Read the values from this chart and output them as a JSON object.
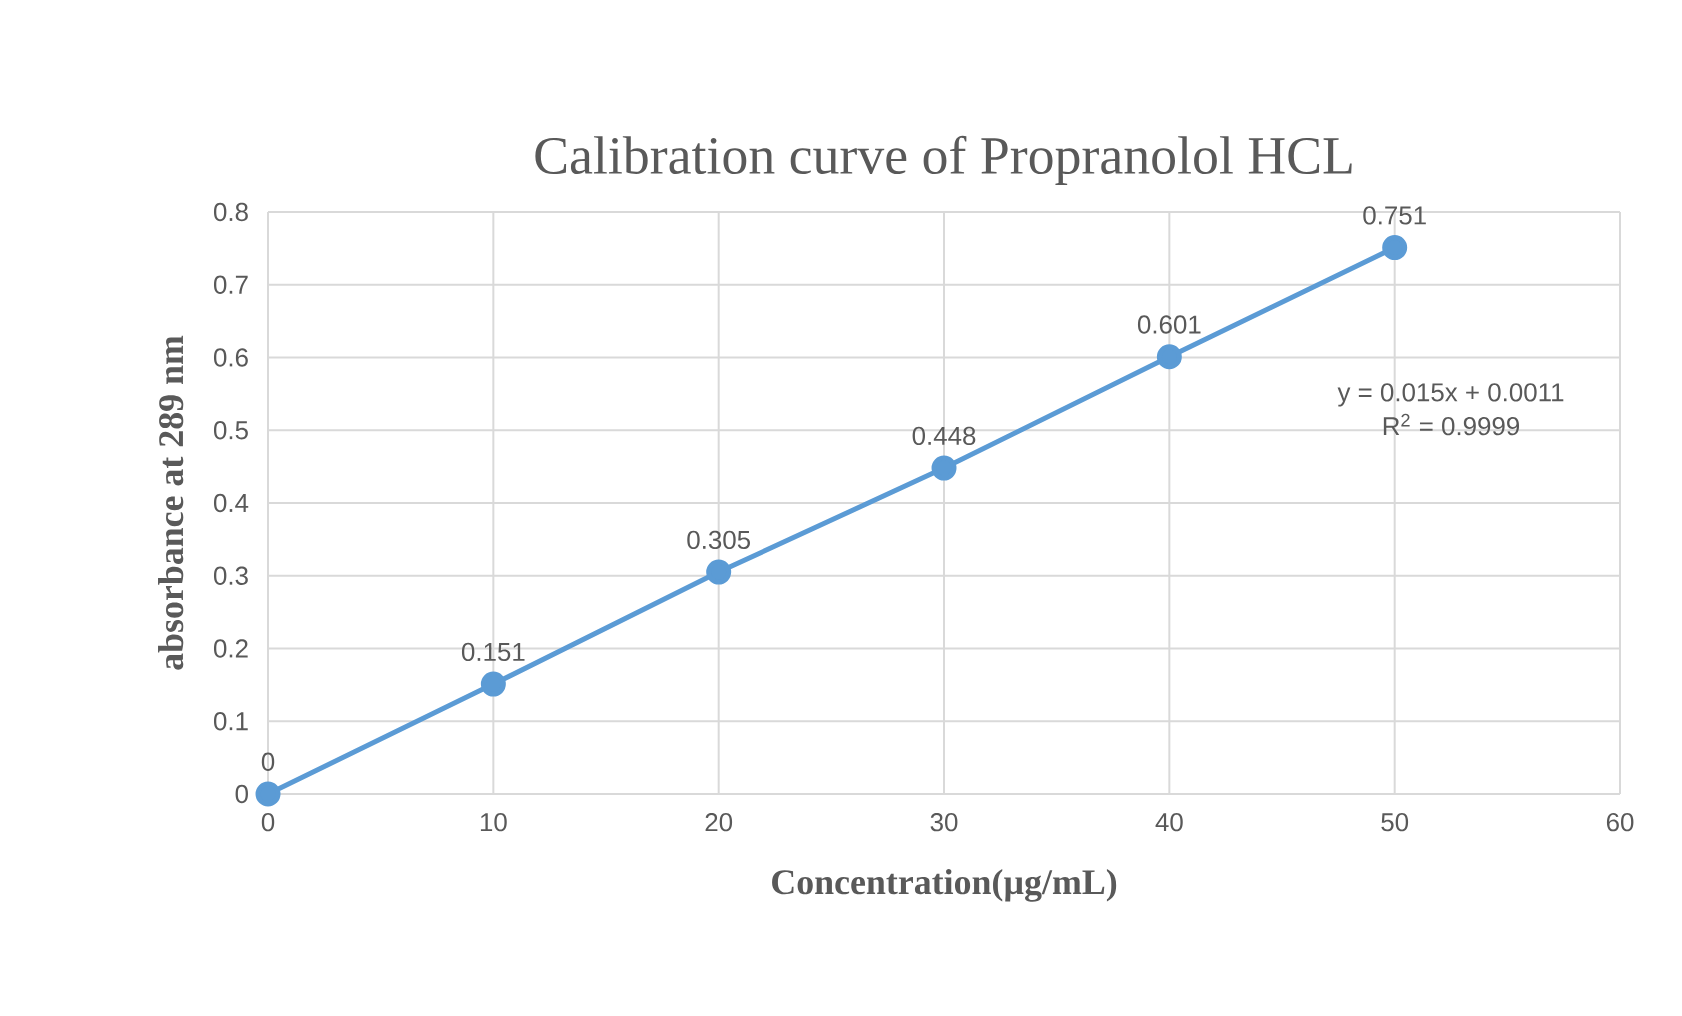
{
  "chart_data": {
    "type": "line",
    "title": "Calibration curve of Propranolol HCL",
    "xlabel": "Concentration(µg/mL)",
    "ylabel": "absorbance at 289 nm",
    "x": [
      0,
      10,
      20,
      30,
      40,
      50
    ],
    "series": [
      {
        "color": "#5b9bd5",
        "values": [
          0,
          0.151,
          0.305,
          0.448,
          0.601,
          0.751
        ]
      }
    ],
    "xlim": [
      0,
      60
    ],
    "xticks": [
      0,
      10,
      20,
      30,
      40,
      50,
      60
    ],
    "ylim": [
      0,
      0.8
    ],
    "yticks": [
      0,
      0.1,
      0.2,
      0.3,
      0.4,
      0.5,
      0.6,
      0.7,
      0.8
    ],
    "grid": true,
    "marker": "circle",
    "line_style": "solid",
    "data_labels": true,
    "annotations": [
      "y = 0.015x + 0.0011",
      "R$^{2}$ = 0.9999"
    ]
  }
}
